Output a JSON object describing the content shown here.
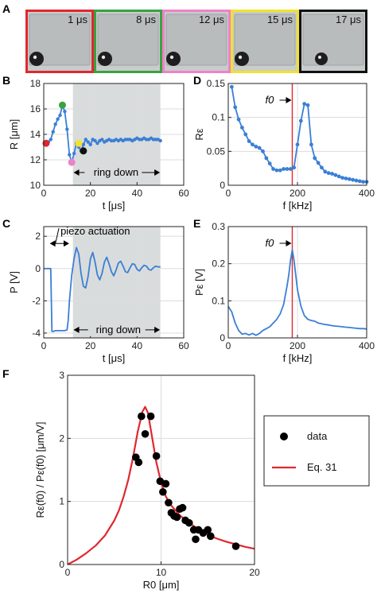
{
  "panel_labels": {
    "A": "A",
    "B": "B",
    "C": "C",
    "D": "D",
    "E": "E",
    "F": "F"
  },
  "frames": [
    {
      "time": "1 μs",
      "border_color": "#e0282e"
    },
    {
      "time": "8 μs",
      "border_color": "#3aa241"
    },
    {
      "time": "12 μs",
      "border_color": "#ee82c8"
    },
    {
      "time": "15 μs",
      "border_color": "#f2e22c"
    },
    {
      "time": "17 μs",
      "border_color": "#111111"
    }
  ],
  "colors": {
    "line": "#3a7fd6",
    "shade": "#d9dcdc",
    "fit": "#e0282e",
    "vline": "#e0282e"
  },
  "chart_data": [
    {
      "id": "B",
      "type": "line",
      "xlabel": "t [μs]",
      "ylabel": "R [μm]",
      "xlim": [
        0,
        60
      ],
      "ylim": [
        10,
        18
      ],
      "xticks": [
        "0",
        "20",
        "40",
        "60"
      ],
      "yticks": [
        "10",
        "12",
        "14",
        "16",
        "18"
      ],
      "shaded_region": [
        12.5,
        50
      ],
      "annotation": "ring down",
      "x": [
        1,
        2,
        3,
        4,
        5,
        6,
        7,
        8,
        9,
        10,
        11,
        12,
        13,
        14,
        15,
        16,
        17,
        18,
        19,
        20,
        21,
        22,
        23,
        24,
        25,
        26,
        27,
        28,
        29,
        30,
        31,
        32,
        33,
        34,
        35,
        36,
        37,
        38,
        39,
        40,
        41,
        42,
        43,
        44,
        45,
        46,
        47,
        48,
        49,
        50
      ],
      "y": [
        13.3,
        13.4,
        13.6,
        14.2,
        14.8,
        15.2,
        15.5,
        16.3,
        15.8,
        14.4,
        12.4,
        11.8,
        12.5,
        13.3,
        13.0,
        12.7,
        13.2,
        13.6,
        13.4,
        13.2,
        13.6,
        13.5,
        13.3,
        13.5,
        13.6,
        13.4,
        13.5,
        13.6,
        13.5,
        13.5,
        13.6,
        13.5,
        13.6,
        13.5,
        13.6,
        13.6,
        13.6,
        13.5,
        13.6,
        13.7,
        13.6,
        13.6,
        13.7,
        13.6,
        13.6,
        13.7,
        13.6,
        13.6,
        13.6,
        13.5
      ],
      "markers": [
        {
          "x": 1,
          "y": 13.3,
          "color": "#e0282e"
        },
        {
          "x": 8,
          "y": 16.3,
          "color": "#3aa241"
        },
        {
          "x": 12,
          "y": 11.8,
          "color": "#ee82c8"
        },
        {
          "x": 15,
          "y": 13.3,
          "color": "#f2e22c"
        },
        {
          "x": 17,
          "y": 12.7,
          "color": "#111111"
        }
      ]
    },
    {
      "id": "C",
      "type": "line",
      "xlabel": "t [μs]",
      "ylabel": "P [V]",
      "xlim": [
        0,
        60
      ],
      "ylim": [
        -4.3,
        2.6
      ],
      "xticks": [
        "0",
        "20",
        "40",
        "60"
      ],
      "yticks": [
        "-4",
        "-2",
        "0",
        "2"
      ],
      "ytick_values": [
        -4,
        -2,
        0,
        2
      ],
      "shaded_region": [
        12.5,
        50
      ],
      "annotations": [
        "piezo actuation",
        "ring down"
      ],
      "x": [
        0,
        1,
        2,
        3,
        3.5,
        4,
        5,
        6,
        7,
        8,
        9,
        10,
        10.5,
        11,
        12,
        13,
        14,
        15,
        16,
        17,
        18,
        19,
        20,
        21,
        22,
        23,
        24,
        25,
        26,
        27,
        28,
        29,
        30,
        31,
        32,
        33,
        34,
        35,
        36,
        37,
        38,
        39,
        40,
        41,
        42,
        43,
        44,
        45,
        46,
        47,
        48,
        49,
        50
      ],
      "y": [
        0,
        0,
        0,
        0,
        -3.9,
        -3.9,
        -3.85,
        -3.85,
        -3.85,
        -3.85,
        -3.85,
        -3.8,
        -3.2,
        -2.0,
        -0.4,
        0.6,
        1.3,
        0.9,
        -0.3,
        -1.1,
        -1.2,
        -0.5,
        0.6,
        1.0,
        0.4,
        -0.4,
        -0.7,
        -0.3,
        0.4,
        0.7,
        0.3,
        -0.2,
        -0.45,
        -0.1,
        0.35,
        0.45,
        0.15,
        -0.2,
        -0.25,
        0.05,
        0.3,
        0.25,
        -0.05,
        -0.15,
        0.05,
        0.2,
        0.15,
        -0.05,
        -0.1,
        0.05,
        0.15,
        0.1,
        0.1
      ]
    },
    {
      "id": "D",
      "type": "line",
      "xlabel": "f [kHz]",
      "ylabel": "Rε",
      "xlim": [
        0,
        400
      ],
      "ylim": [
        0,
        0.15
      ],
      "xticks": [
        "0",
        "200",
        "400"
      ],
      "yticks": [
        "0",
        "0.05",
        "0.1",
        "0.15"
      ],
      "ytick_values": [
        0,
        0.05,
        0.1,
        0.15
      ],
      "vline": 185,
      "vline_label": "f0",
      "x": [
        10,
        20,
        30,
        40,
        50,
        60,
        70,
        80,
        90,
        100,
        110,
        120,
        130,
        140,
        150,
        160,
        170,
        180,
        190,
        200,
        210,
        220,
        230,
        240,
        250,
        260,
        270,
        280,
        290,
        300,
        310,
        320,
        330,
        340,
        350,
        360,
        370,
        380,
        390,
        400
      ],
      "y": [
        0.145,
        0.115,
        0.097,
        0.085,
        0.075,
        0.065,
        0.06,
        0.057,
        0.055,
        0.05,
        0.04,
        0.032,
        0.024,
        0.022,
        0.022,
        0.024,
        0.024,
        0.024,
        0.026,
        0.06,
        0.095,
        0.12,
        0.118,
        0.06,
        0.04,
        0.033,
        0.026,
        0.02,
        0.018,
        0.017,
        0.015,
        0.013,
        0.011,
        0.01,
        0.009,
        0.008,
        0.007,
        0.006,
        0.005,
        0.005
      ]
    },
    {
      "id": "E",
      "type": "line",
      "xlabel": "f [kHz]",
      "ylabel": "Pε [V]",
      "xlim": [
        0,
        400
      ],
      "ylim": [
        0,
        0.3
      ],
      "xticks": [
        "0",
        "200",
        "400"
      ],
      "yticks": [
        "0",
        "0.1",
        "0.2",
        "0.3"
      ],
      "ytick_values": [
        0,
        0.1,
        0.2,
        0.3
      ],
      "vline": 185,
      "vline_label": "f0",
      "x": [
        0,
        10,
        20,
        30,
        40,
        50,
        60,
        70,
        80,
        90,
        100,
        110,
        120,
        130,
        140,
        150,
        160,
        170,
        175,
        180,
        185,
        190,
        195,
        200,
        210,
        220,
        230,
        240,
        250,
        260,
        270,
        280,
        290,
        300,
        310,
        320,
        330,
        340,
        350,
        360,
        370,
        380,
        390,
        400
      ],
      "y": [
        0.085,
        0.07,
        0.04,
        0.02,
        0.01,
        0.012,
        0.008,
        0.012,
        0.007,
        0.012,
        0.02,
        0.025,
        0.03,
        0.04,
        0.05,
        0.065,
        0.09,
        0.14,
        0.17,
        0.21,
        0.237,
        0.21,
        0.17,
        0.13,
        0.085,
        0.06,
        0.05,
        0.047,
        0.045,
        0.04,
        0.038,
        0.036,
        0.035,
        0.033,
        0.032,
        0.031,
        0.03,
        0.029,
        0.028,
        0.027,
        0.026,
        0.025,
        0.025,
        0.024
      ]
    },
    {
      "id": "F",
      "type": "scatter",
      "xlabel": "R0 [μm]",
      "ylabel": "Rε(f0) / Pε(f0) [μm/V]",
      "xlim": [
        0,
        20
      ],
      "ylim": [
        0,
        3
      ],
      "xticks": [
        "0",
        "10",
        "20"
      ],
      "yticks": [
        "0",
        "1",
        "2",
        "3"
      ],
      "legend": [
        "data",
        "Eq. 31"
      ],
      "legend_position": "right",
      "series": [
        {
          "name": "data",
          "type": "scatter",
          "x": [
            7.3,
            7.6,
            7.9,
            8.3,
            8.9,
            9.5,
            9.9,
            10.2,
            10.5,
            10.8,
            11.1,
            11.4,
            11.7,
            12.0,
            12.3,
            12.6,
            13.0,
            13.5,
            13.7,
            14.0,
            14.5,
            15.0,
            15.3,
            18.0
          ],
          "y": [
            1.7,
            1.62,
            2.35,
            2.07,
            2.35,
            1.72,
            1.32,
            1.15,
            1.28,
            0.98,
            0.82,
            0.77,
            0.75,
            0.88,
            0.9,
            0.7,
            0.66,
            0.55,
            0.4,
            0.55,
            0.5,
            0.55,
            0.45,
            0.29
          ]
        },
        {
          "name": "Eq. 31",
          "type": "line",
          "x": [
            0,
            1,
            2,
            3,
            4,
            5,
            5.5,
            6,
            6.5,
            7,
            7.5,
            8,
            8.3,
            8.6,
            9,
            9.5,
            10,
            10.5,
            11,
            12,
            13,
            14,
            15,
            16,
            17,
            18,
            19,
            20
          ],
          "y": [
            0.0,
            0.08,
            0.18,
            0.3,
            0.46,
            0.7,
            0.86,
            1.08,
            1.35,
            1.7,
            2.1,
            2.42,
            2.5,
            2.4,
            2.05,
            1.62,
            1.3,
            1.08,
            0.95,
            0.78,
            0.66,
            0.56,
            0.47,
            0.41,
            0.36,
            0.32,
            0.28,
            0.25
          ]
        }
      ]
    }
  ]
}
